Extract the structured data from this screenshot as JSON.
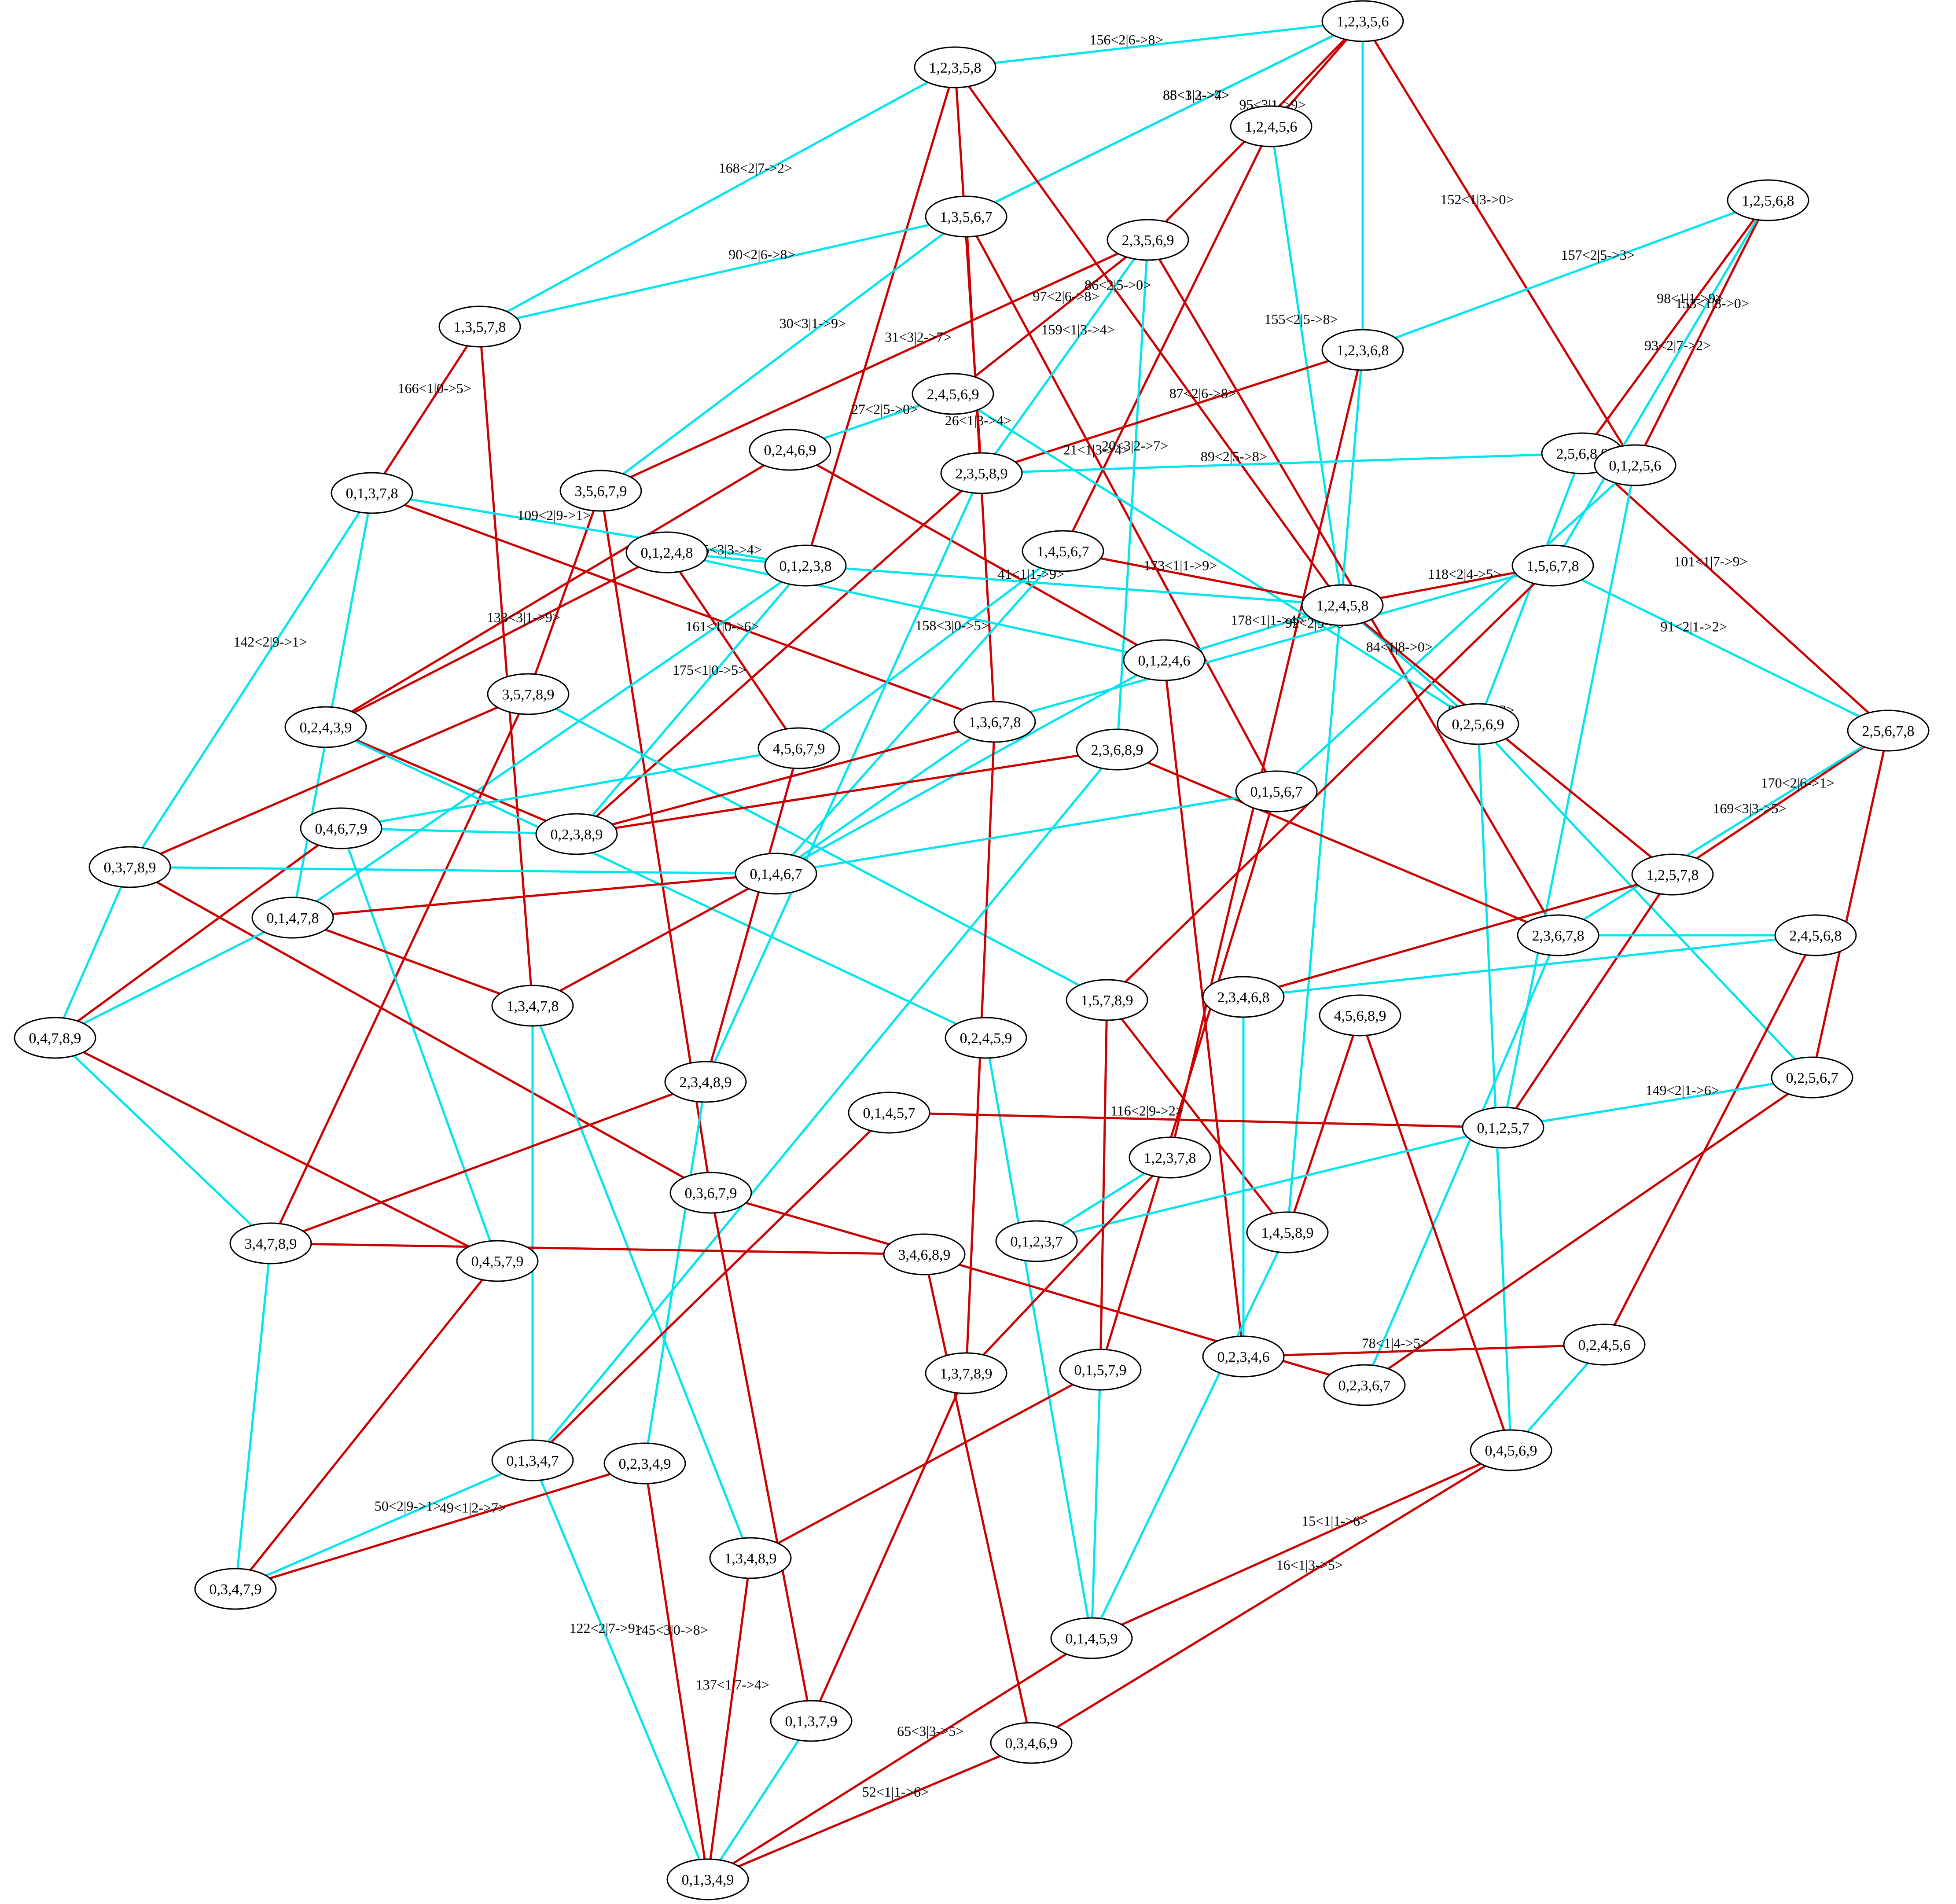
{
  "colors": {
    "edge_a": "#00e5ee",
    "edge_b": "#cc0000",
    "node_fill": "#ffffff",
    "node_stroke": "#000000",
    "background": "#ffffff"
  },
  "nodes": [
    "1,2,3,5,6",
    "1,2,3,5,8",
    "1,2,4,5,6",
    "1,3,5,6,7",
    "2,3,5,6,9",
    "1,2,5,6,8",
    "1,3,5,7,8",
    "1,2,3,6,8",
    "2,4,5,6,9",
    "0,2,4,6,9",
    "2,3,5,8,9",
    "2,5,6,8,9",
    "0,1,2,5,6",
    "3,5,6,7,9",
    "0,1,3,7,8",
    "0,1,2,4,8",
    "0,1,2,3,8",
    "1,4,5,6,7",
    "1,5,6,7,8",
    "1,2,4,5,8",
    "0,1,2,4,6",
    "3,5,7,8,9",
    "0,2,4,3,9",
    "1,3,6,7,8",
    "0,2,5,6,9",
    "2,5,6,7,8",
    "4,5,6,7,9",
    "2,3,6,8,9",
    "0,1,5,6,7",
    "0,4,6,7,9",
    "0,2,3,8,9",
    "0,3,7,8,9",
    "0,1,4,6,7",
    "1,2,5,7,8",
    "0,1,4,7,8",
    "2,3,6,7,8",
    "2,4,5,6,8",
    "0,4,7,8,9",
    "1,3,4,7,8",
    "1,5,7,8,9",
    "2,3,4,6,8",
    "4,5,6,8,9",
    "0,2,4,5,9",
    "2,3,4,8,9",
    "0,1,4,5,7",
    "0,2,5,6,7",
    "0,1,2,5,7",
    "1,2,3,7,8",
    "0,3,6,7,9",
    "3,4,7,8,9",
    "0,4,5,7,9",
    "3,4,6,8,9",
    "0,1,2,3,7",
    "1,4,5,8,9",
    "0,2,3,4,6",
    "0,2,4,5,6",
    "1,3,7,8,9",
    "0,1,5,7,9",
    "0,2,3,6,7",
    "0,1,3,4,7",
    "0,2,3,4,9",
    "0,4,5,6,9",
    "0,3,4,7,9",
    "1,3,4,8,9",
    "0,1,4,5,9",
    "0,1,3,7,9",
    "0,3,4,6,9",
    "0,1,3,4,9"
  ],
  "edges": [
    {
      "from": "1,2,3,5,8",
      "to": "1,2,3,5,6",
      "color": "cyan",
      "label": "156<2|6->8>"
    },
    {
      "from": "1,2,3,5,6",
      "to": "1,3,5,6,7",
      "color": "red",
      "label": "85<1|3->4>"
    },
    {
      "from": "1,2,3,5,6",
      "to": "1,3,5,6,7",
      "color": "cyan",
      "label": "88<3|2->7>"
    },
    {
      "from": "1,2,3,5,6",
      "to": "2,3,5,6,9",
      "color": "red",
      "label": "95<3|1->9>"
    },
    {
      "from": "1,2,3,5,6",
      "to": "1,2,4,5,6",
      "color": "red",
      "label": ""
    },
    {
      "from": "1,2,3,5,6",
      "to": "1,2,3,6,8",
      "color": "cyan",
      "label": ""
    },
    {
      "from": "1,2,3,5,6",
      "to": "0,1,2,5,6",
      "color": "red",
      "label": "152<1|3->0>"
    },
    {
      "from": "1,2,4,5,6",
      "to": "1,2,4,5,8",
      "color": "cyan",
      "label": "155<2|5->8>"
    },
    {
      "from": "1,2,4,5,6",
      "to": "1,4,5,6,7",
      "color": "red",
      "label": ""
    },
    {
      "from": "1,2,3,5,8",
      "to": "1,3,5,7,8",
      "color": "cyan",
      "label": "168<2|7->2>"
    },
    {
      "from": "1,2,3,5,8",
      "to": "2,3,5,8,9",
      "color": "red",
      "label": ""
    },
    {
      "from": "1,2,3,5,8",
      "to": "0,1,2,3,8",
      "color": "red",
      "label": ""
    },
    {
      "from": "1,2,3,5,8",
      "to": "1,2,4,5,8",
      "color": "red",
      "label": "86<2|5->0>"
    },
    {
      "from": "1,3,5,6,7",
      "to": "1,3,5,7,8",
      "color": "cyan",
      "label": "90<2|6->8>"
    },
    {
      "from": "1,3,5,6,7",
      "to": "3,5,6,7,9",
      "color": "cyan",
      "label": "30<3|1->9>"
    },
    {
      "from": "1,3,5,6,7",
      "to": "1,3,6,7,8",
      "color": "red",
      "label": "26<1|3->4>"
    },
    {
      "from": "1,3,5,6,7",
      "to": "0,1,5,6,7",
      "color": "red",
      "label": "21<1|3->4>"
    },
    {
      "from": "2,3,5,6,9",
      "to": "3,5,6,7,9",
      "color": "red",
      "label": "31<3|2->7>"
    },
    {
      "from": "2,3,5,6,9",
      "to": "2,4,5,6,9",
      "color": "red",
      "label": "97<2|6->8>"
    },
    {
      "from": "2,3,5,6,9",
      "to": "2,3,5,8,9",
      "color": "cyan",
      "label": "159<1|3->4>"
    },
    {
      "from": "2,3,5,6,9",
      "to": "2,3,6,8,9",
      "color": "cyan",
      "label": "20<3|2->7>"
    },
    {
      "from": "2,3,5,6,9",
      "to": "2,3,6,7,8",
      "color": "red",
      "label": ""
    },
    {
      "from": "1,2,5,6,8",
      "to": "1,2,3,6,8",
      "color": "cyan",
      "label": "157<2|5->3>"
    },
    {
      "from": "1,2,5,6,8",
      "to": "2,5,6,8,9",
      "color": "red",
      "label": "98<1|1->9>"
    },
    {
      "from": "1,2,5,6,8",
      "to": "0,1,2,5,6",
      "color": "red",
      "label": "153<1|8->0>"
    },
    {
      "from": "1,2,5,6,8",
      "to": "1,5,6,7,8",
      "color": "cyan",
      "label": "93<2|7->2>"
    },
    {
      "from": "1,3,5,7,8",
      "to": "0,1,3,7,8",
      "color": "red",
      "label": "166<1|0->5>"
    },
    {
      "from": "1,3,5,7,8",
      "to": "1,3,4,7,8",
      "color": "red",
      "label": ""
    },
    {
      "from": "1,2,3,6,8",
      "to": "2,3,5,8,9",
      "color": "red",
      "label": "87<2|6->8>"
    },
    {
      "from": "1,2,3,6,8",
      "to": "1,2,3,7,8",
      "color": "red",
      "label": ""
    },
    {
      "from": "1,2,3,6,8",
      "to": "1,4,5,8,9",
      "color": "cyan",
      "label": ""
    },
    {
      "from": "2,4,5,6,9",
      "to": "0,2,4,6,9",
      "color": "cyan",
      "label": "27<2|5->0>"
    },
    {
      "from": "2,4,5,6,9",
      "to": "0,2,5,6,9",
      "color": "cyan",
      "label": ""
    },
    {
      "from": "0,2,4,6,9",
      "to": "0,2,4,3,9",
      "color": "red",
      "label": ""
    },
    {
      "from": "0,2,4,6,9",
      "to": "0,1,2,4,6",
      "color": "red",
      "label": ""
    },
    {
      "from": "2,3,5,8,9",
      "to": "2,5,6,8,9",
      "color": "cyan",
      "label": "89<2|5->8>"
    },
    {
      "from": "2,3,5,8,9",
      "to": "0,2,3,8,9",
      "color": "red",
      "label": ""
    },
    {
      "from": "2,3,5,8,9",
      "to": "2,3,4,8,9",
      "color": "cyan",
      "label": ""
    },
    {
      "from": "2,5,6,8,9",
      "to": "2,5,6,7,8",
      "color": "red",
      "label": "101<1|7->9>"
    },
    {
      "from": "2,5,6,8,9",
      "to": "0,2,5,6,9",
      "color": "cyan",
      "label": ""
    },
    {
      "from": "0,1,2,5,6",
      "to": "0,1,5,6,7",
      "color": "cyan",
      "label": ""
    },
    {
      "from": "0,1,2,5,6",
      "to": "0,1,2,5,7",
      "color": "cyan",
      "label": ""
    },
    {
      "from": "3,5,6,7,9",
      "to": "3,5,7,8,9",
      "color": "red",
      "label": ""
    },
    {
      "from": "3,5,6,7,9",
      "to": "0,3,6,7,9",
      "color": "red",
      "label": ""
    },
    {
      "from": "0,1,3,7,8",
      "to": "0,1,2,3,8",
      "color": "cyan",
      "label": "109<2|9->1>"
    },
    {
      "from": "0,1,3,7,8",
      "to": "0,3,7,8,9",
      "color": "cyan",
      "label": "142<2|9->1>"
    },
    {
      "from": "0,1,3,7,8",
      "to": "0,1,4,7,8",
      "color": "cyan",
      "label": ""
    },
    {
      "from": "0,1,3,7,8",
      "to": "1,3,6,7,8",
      "color": "red",
      "label": ""
    },
    {
      "from": "0,1,2,4,8",
      "to": "0,1,2,3,8",
      "color": "cyan",
      "label": "185<3|3->4>"
    },
    {
      "from": "0,1,2,4,8",
      "to": "0,1,2,4,6",
      "color": "cyan",
      "label": ""
    },
    {
      "from": "0,1,2,4,8",
      "to": "0,2,4,3,9",
      "color": "red",
      "label": "133<3|1->9>"
    },
    {
      "from": "0,1,2,4,8",
      "to": "4,5,6,7,9",
      "color": "red",
      "label": "161<1|0->6>"
    },
    {
      "from": "0,1,2,3,8",
      "to": "1,2,4,5,8",
      "color": "cyan",
      "label": "41<1|1->9>"
    },
    {
      "from": "0,1,2,3,8",
      "to": "0,2,3,8,9",
      "color": "cyan",
      "label": "175<1|0->5>"
    },
    {
      "from": "0,1,2,3,8",
      "to": "0,1,4,7,8",
      "color": "cyan",
      "label": ""
    },
    {
      "from": "1,4,5,6,7",
      "to": "1,2,4,5,8",
      "color": "red",
      "label": "173<1|1->9>"
    },
    {
      "from": "1,4,5,6,7",
      "to": "4,5,6,7,9",
      "color": "cyan",
      "label": "158<3|0->5>"
    },
    {
      "from": "1,4,5,6,7",
      "to": "0,1,4,6,7",
      "color": "cyan",
      "label": ""
    },
    {
      "from": "1,5,6,7,8",
      "to": "1,2,4,5,8",
      "color": "red",
      "label": "118<2|4->5>"
    },
    {
      "from": "1,5,6,7,8",
      "to": "2,5,6,7,8",
      "color": "cyan",
      "label": "91<2|1->2>"
    },
    {
      "from": "1,5,6,7,8",
      "to": "1,3,6,7,8",
      "color": "cyan",
      "label": "92<2|5->3>"
    },
    {
      "from": "1,5,6,7,8",
      "to": "1,5,7,8,9",
      "color": "red",
      "label": ""
    },
    {
      "from": "1,2,4,5,8",
      "to": "0,1,2,4,6",
      "color": "cyan",
      "label": "178<1|1->4>"
    },
    {
      "from": "1,2,4,5,8",
      "to": "0,2,5,6,9",
      "color": "cyan",
      "label": "84<1|8->0>"
    },
    {
      "from": "1,2,4,5,8",
      "to": "1,2,5,7,8",
      "color": "red",
      "label": "83<2|7->2>"
    },
    {
      "from": "0,1,2,4,6",
      "to": "0,1,4,6,7",
      "color": "cyan",
      "label": ""
    },
    {
      "from": "0,1,2,4,6",
      "to": "0,2,3,4,6",
      "color": "red",
      "label": ""
    },
    {
      "from": "3,5,7,8,9",
      "to": "0,3,7,8,9",
      "color": "red",
      "label": ""
    },
    {
      "from": "3,5,7,8,9",
      "to": "3,4,7,8,9",
      "color": "red",
      "label": ""
    },
    {
      "from": "3,5,7,8,9",
      "to": "1,5,7,8,9",
      "color": "cyan",
      "label": ""
    },
    {
      "from": "0,2,4,3,9",
      "to": "0,2,3,8,9",
      "color": "red",
      "label": ""
    },
    {
      "from": "0,2,4,3,9",
      "to": "0,2,4,5,9",
      "color": "cyan",
      "label": ""
    },
    {
      "from": "1,3,6,7,8",
      "to": "0,2,3,8,9",
      "color": "red",
      "label": ""
    },
    {
      "from": "1,3,6,7,8",
      "to": "1,3,7,8,9",
      "color": "red",
      "label": ""
    },
    {
      "from": "1,3,6,7,8",
      "to": "0,1,4,6,7",
      "color": "cyan",
      "label": ""
    },
    {
      "from": "0,2,5,6,9",
      "to": "0,2,5,6,7",
      "color": "cyan",
      "label": ""
    },
    {
      "from": "0,2,5,6,9",
      "to": "0,4,5,6,9",
      "color": "cyan",
      "label": ""
    },
    {
      "from": "2,5,6,7,8",
      "to": "1,2,5,7,8",
      "color": "red",
      "label": "170<2|6->1>"
    },
    {
      "from": "2,5,6,7,8",
      "to": "2,3,6,7,8",
      "color": "cyan",
      "label": "169<3|3->5>"
    },
    {
      "from": "2,5,6,7,8",
      "to": "0,2,5,6,7",
      "color": "red",
      "label": ""
    },
    {
      "from": "4,5,6,7,9",
      "to": "0,4,6,7,9",
      "color": "cyan",
      "label": ""
    },
    {
      "from": "4,5,6,7,9",
      "to": "2,3,4,8,9",
      "color": "red",
      "label": ""
    },
    {
      "from": "2,3,6,8,9",
      "to": "0,2,3,8,9",
      "color": "red",
      "label": ""
    },
    {
      "from": "2,3,6,8,9",
      "to": "2,3,6,7,8",
      "color": "red",
      "label": ""
    },
    {
      "from": "2,3,6,8,9",
      "to": "0,1,3,4,7",
      "color": "cyan",
      "label": ""
    },
    {
      "from": "0,1,5,6,7",
      "to": "0,1,4,6,7",
      "color": "cyan",
      "label": ""
    },
    {
      "from": "0,1,5,6,7",
      "to": "0,1,5,7,9",
      "color": "red",
      "label": ""
    },
    {
      "from": "0,4,6,7,9",
      "to": "0,2,3,8,9",
      "color": "cyan",
      "label": ""
    },
    {
      "from": "0,4,6,7,9",
      "to": "0,4,7,8,9",
      "color": "red",
      "label": ""
    },
    {
      "from": "0,4,6,7,9",
      "to": "0,4,5,7,9",
      "color": "cyan",
      "label": ""
    },
    {
      "from": "0,3,7,8,9",
      "to": "0,1,4,6,7",
      "color": "cyan",
      "label": ""
    },
    {
      "from": "0,3,7,8,9",
      "to": "0,4,7,8,9",
      "color": "cyan",
      "label": ""
    },
    {
      "from": "0,3,7,8,9",
      "to": "0,3,6,7,9",
      "color": "red",
      "label": ""
    },
    {
      "from": "0,1,4,6,7",
      "to": "0,1,4,7,8",
      "color": "red",
      "label": ""
    },
    {
      "from": "0,1,4,6,7",
      "to": "1,3,4,7,8",
      "color": "red",
      "label": ""
    },
    {
      "from": "1,2,5,7,8",
      "to": "2,3,4,6,8",
      "color": "red",
      "label": ""
    },
    {
      "from": "1,2,5,7,8",
      "to": "0,1,2,5,7",
      "color": "red",
      "label": ""
    },
    {
      "from": "0,1,4,7,8",
      "to": "0,4,7,8,9",
      "color": "cyan",
      "label": ""
    },
    {
      "from": "0,1,4,7,8",
      "to": "1,3,4,7,8",
      "color": "red",
      "label": ""
    },
    {
      "from": "2,3,6,7,8",
      "to": "2,4,5,6,8",
      "color": "cyan",
      "label": ""
    },
    {
      "from": "2,3,6,7,8",
      "to": "0,2,3,6,7",
      "color": "cyan",
      "label": ""
    },
    {
      "from": "2,4,5,6,8",
      "to": "2,3,4,6,8",
      "color": "cyan",
      "label": ""
    },
    {
      "from": "2,4,5,6,8",
      "to": "0,2,4,5,6",
      "color": "red",
      "label": ""
    },
    {
      "from": "0,4,7,8,9",
      "to": "3,4,7,8,9",
      "color": "cyan",
      "label": ""
    },
    {
      "from": "0,4,7,8,9",
      "to": "0,4,5,7,9",
      "color": "red",
      "label": ""
    },
    {
      "from": "1,3,4,7,8",
      "to": "0,1,3,4,7",
      "color": "cyan",
      "label": ""
    },
    {
      "from": "1,3,4,7,8",
      "to": "1,3,4,8,9",
      "color": "cyan",
      "label": ""
    },
    {
      "from": "1,5,7,8,9",
      "to": "0,1,5,7,9",
      "color": "red",
      "label": ""
    },
    {
      "from": "1,5,7,8,9",
      "to": "1,4,5,8,9",
      "color": "red",
      "label": ""
    },
    {
      "from": "2,3,4,6,8",
      "to": "0,2,3,4,6",
      "color": "cyan",
      "label": ""
    },
    {
      "from": "4,5,6,8,9",
      "to": "1,4,5,8,9",
      "color": "red",
      "label": ""
    },
    {
      "from": "4,5,6,8,9",
      "to": "0,4,5,6,9",
      "color": "red",
      "label": ""
    },
    {
      "from": "0,2,4,5,9",
      "to": "0,1,4,5,9",
      "color": "cyan",
      "label": ""
    },
    {
      "from": "2,3,4,8,9",
      "to": "3,4,7,8,9",
      "color": "red",
      "label": ""
    },
    {
      "from": "2,3,4,8,9",
      "to": "0,2,3,4,9",
      "color": "cyan",
      "label": ""
    },
    {
      "from": "0,1,4,5,7",
      "to": "0,1,3,4,7",
      "color": "red",
      "label": ""
    },
    {
      "from": "0,1,4,5,7",
      "to": "0,1,2,5,7",
      "color": "red",
      "label": "116<2|9->2>"
    },
    {
      "from": "0,2,5,6,7",
      "to": "0,2,3,6,7",
      "color": "red",
      "label": ""
    },
    {
      "from": "0,2,5,6,7",
      "to": "0,1,2,5,7",
      "color": "cyan",
      "label": "149<2|1->6>"
    },
    {
      "from": "0,1,2,5,7",
      "to": "0,1,2,3,7",
      "color": "cyan",
      "label": ""
    },
    {
      "from": "1,2,3,7,8",
      "to": "0,1,2,3,7",
      "color": "cyan",
      "label": ""
    },
    {
      "from": "1,2,3,7,8",
      "to": "1,3,7,8,9",
      "color": "red",
      "label": ""
    },
    {
      "from": "0,3,6,7,9",
      "to": "3,4,6,8,9",
      "color": "red",
      "label": ""
    },
    {
      "from": "0,3,6,7,9",
      "to": "0,1,3,7,9",
      "color": "red",
      "label": ""
    },
    {
      "from": "3,4,7,8,9",
      "to": "3,4,6,8,9",
      "color": "red",
      "label": ""
    },
    {
      "from": "3,4,7,8,9",
      "to": "0,3,4,7,9",
      "color": "cyan",
      "label": ""
    },
    {
      "from": "0,4,5,7,9",
      "to": "0,3,4,7,9",
      "color": "red",
      "label": ""
    },
    {
      "from": "3,4,6,8,9",
      "to": "0,2,3,6,7",
      "color": "red",
      "label": ""
    },
    {
      "from": "3,4,6,8,9",
      "to": "0,3,4,6,9",
      "color": "red",
      "label": ""
    },
    {
      "from": "1,4,5,8,9",
      "to": "0,1,4,5,9",
      "color": "cyan",
      "label": ""
    },
    {
      "from": "0,2,3,4,6",
      "to": "0,2,4,5,6",
      "color": "red",
      "label": "78<1|4->5>"
    },
    {
      "from": "0,2,4,5,6",
      "to": "0,4,5,6,9",
      "color": "cyan",
      "label": ""
    },
    {
      "from": "1,3,7,8,9",
      "to": "0,1,3,7,9",
      "color": "red",
      "label": ""
    },
    {
      "from": "0,1,5,7,9",
      "to": "1,3,4,8,9",
      "color": "red",
      "label": ""
    },
    {
      "from": "0,1,5,7,9",
      "to": "0,1,4,5,9",
      "color": "cyan",
      "label": ""
    },
    {
      "from": "0,1,3,4,7",
      "to": "0,3,4,7,9",
      "color": "cyan",
      "label": "50<2|9->1>"
    },
    {
      "from": "0,1,3,4,7",
      "to": "0,1,3,4,9",
      "color": "cyan",
      "label": "122<2|7->9>"
    },
    {
      "from": "0,2,3,4,9",
      "to": "0,3,4,7,9",
      "color": "red",
      "label": "49<1|2->7>"
    },
    {
      "from": "0,2,3,4,9",
      "to": "0,1,3,4,9",
      "color": "red",
      "label": "145<3|0->8>"
    },
    {
      "from": "0,4,5,6,9",
      "to": "0,1,4,5,9",
      "color": "red",
      "label": "15<1|1->6>"
    },
    {
      "from": "0,4,5,6,9",
      "to": "0,3,4,6,9",
      "color": "red",
      "label": "16<1|3->5>"
    },
    {
      "from": "1,3,4,8,9",
      "to": "0,1,3,4,9",
      "color": "red",
      "label": "137<1|7->4>"
    },
    {
      "from": "0,1,4,5,9",
      "to": "0,1,3,4,9",
      "color": "red",
      "label": "65<3|3->5>"
    },
    {
      "from": "0,1,3,7,9",
      "to": "0,1,3,4,9",
      "color": "cyan",
      "label": ""
    },
    {
      "from": "0,3,4,6,9",
      "to": "0,1,3,4,9",
      "color": "red",
      "label": "52<1|1->6>"
    }
  ]
}
